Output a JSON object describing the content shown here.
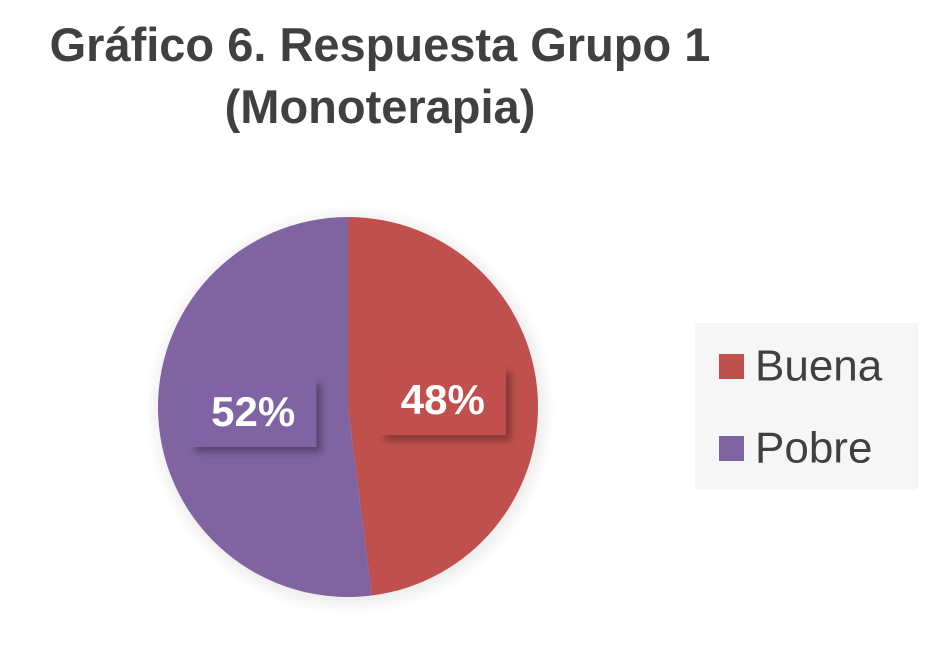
{
  "chart_data": {
    "type": "pie",
    "title": "Gráfico 6. Respuesta Grupo 1 (Monoterapia)",
    "categories": [
      "Buena",
      "Pobre"
    ],
    "values": [
      48,
      52
    ],
    "value_labels": [
      "48%",
      "52%"
    ],
    "colors": [
      "#c0504d",
      "#8064a2"
    ],
    "legend": "right"
  }
}
